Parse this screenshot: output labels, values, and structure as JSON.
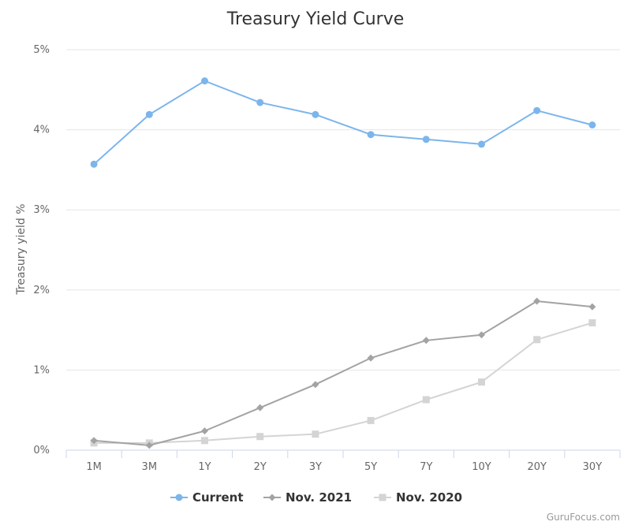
{
  "chart_data": {
    "type": "line",
    "title": "Treasury Yield Curve",
    "xlabel": "",
    "ylabel": "Treasury yield %",
    "categories": [
      "1M",
      "3M",
      "1Y",
      "2Y",
      "3Y",
      "5Y",
      "7Y",
      "10Y",
      "20Y",
      "30Y"
    ],
    "ylim": [
      0,
      5
    ],
    "yticks": [
      {
        "value": 0,
        "label": "0%"
      },
      {
        "value": 1,
        "label": "1%"
      },
      {
        "value": 2,
        "label": "2%"
      },
      {
        "value": 3,
        "label": "3%"
      },
      {
        "value": 4,
        "label": "4%"
      },
      {
        "value": 5,
        "label": "5%"
      }
    ],
    "grid": true,
    "legend_position": "bottom-center",
    "series": [
      {
        "name": "Current",
        "color": "#7cb5ec",
        "marker": "circle",
        "values": [
          3.57,
          4.19,
          4.61,
          4.34,
          4.19,
          3.94,
          3.88,
          3.82,
          4.24,
          4.06
        ]
      },
      {
        "name": "Nov. 2021",
        "color": "#a3a3a3",
        "marker": "diamond",
        "values": [
          0.12,
          0.06,
          0.24,
          0.53,
          0.82,
          1.15,
          1.37,
          1.44,
          1.86,
          1.79
        ]
      },
      {
        "name": "Nov. 2020",
        "color": "#d4d4d4",
        "marker": "square",
        "values": [
          0.09,
          0.09,
          0.12,
          0.17,
          0.2,
          0.37,
          0.63,
          0.85,
          1.38,
          1.59
        ]
      }
    ]
  },
  "credit": "GuruFocus.com"
}
